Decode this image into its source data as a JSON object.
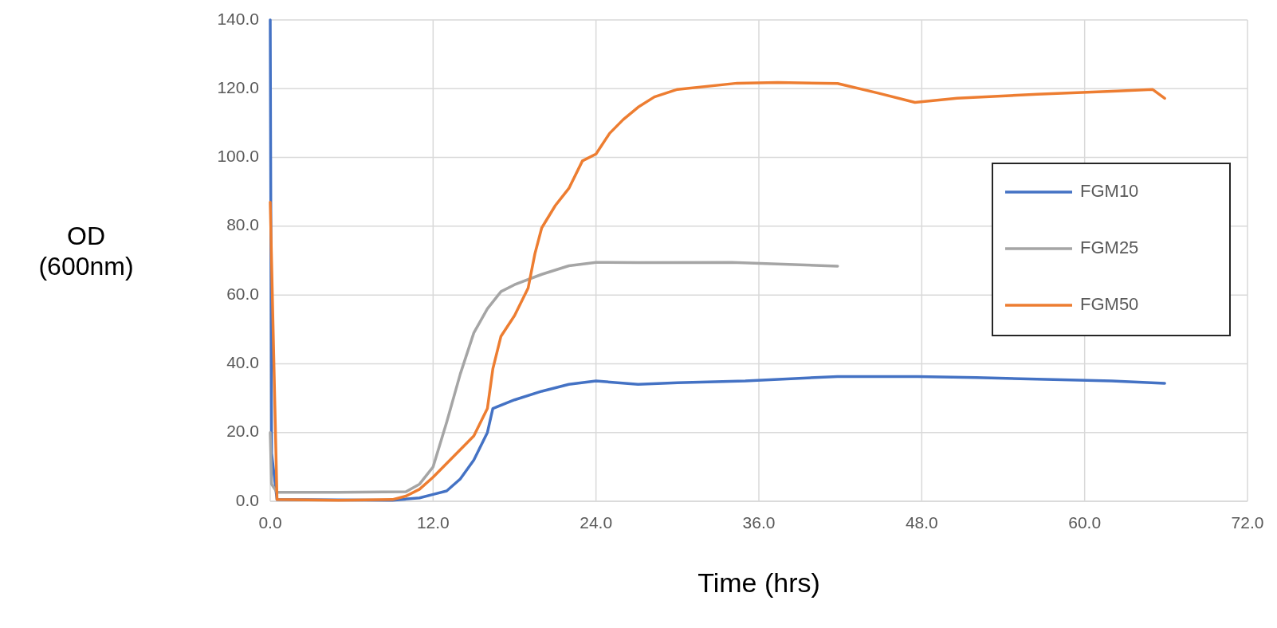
{
  "chart_data": {
    "type": "line",
    "xlabel": "Time (hrs)",
    "ylabel": "OD\n(600nm)",
    "xlim": [
      0,
      72
    ],
    "ylim": [
      0,
      140
    ],
    "xticks": [
      {
        "value": 0,
        "label": "0.0"
      },
      {
        "value": 12,
        "label": "12.0"
      },
      {
        "value": 24,
        "label": "24.0"
      },
      {
        "value": 36,
        "label": "36.0"
      },
      {
        "value": 48,
        "label": "48.0"
      },
      {
        "value": 60,
        "label": "60.0"
      },
      {
        "value": 72,
        "label": "72.0"
      }
    ],
    "yticks": [
      {
        "value": 0,
        "label": "0.0"
      },
      {
        "value": 20,
        "label": "20.0"
      },
      {
        "value": 40,
        "label": "40.0"
      },
      {
        "value": 60,
        "label": "60.0"
      },
      {
        "value": 80,
        "label": "80.0"
      },
      {
        "value": 100,
        "label": "100.0"
      },
      {
        "value": 120,
        "label": "120.0"
      },
      {
        "value": 140,
        "label": "140.0"
      }
    ],
    "grid": true,
    "legend": "right",
    "marker": "none",
    "line_style": "solid",
    "series": [
      {
        "name": "FGM10",
        "color": "#4472c4",
        "x": [
          0,
          0.1,
          0.5,
          9,
          11,
          12,
          13,
          14,
          15,
          16,
          16.4,
          18,
          20,
          22,
          24,
          27.1,
          30,
          35,
          41.8,
          47.7,
          52,
          56.5,
          62,
          65.9
        ],
        "values": [
          140,
          14,
          0.5,
          0.3,
          1,
          2,
          3,
          6.5,
          12,
          20,
          27,
          29.5,
          32,
          34,
          35,
          34,
          34.5,
          35,
          36.3,
          36.3,
          36,
          35.5,
          35,
          34.3
        ]
      },
      {
        "name": "FGM25",
        "color": "#a5a5a5",
        "x": [
          0,
          0.1,
          0.5,
          5,
          10,
          11,
          12,
          13,
          14,
          15,
          16,
          17,
          18,
          20,
          22,
          24,
          27.1,
          34,
          41.8
        ],
        "values": [
          20,
          5,
          2.6,
          2.6,
          2.8,
          5,
          10,
          23,
          37,
          49,
          56,
          61,
          63,
          66,
          68.5,
          69.5,
          69.4,
          69.5,
          68.4
        ]
      },
      {
        "name": "FGM50",
        "color": "#ed7d31",
        "x": [
          0,
          0.5,
          5,
          9,
          10,
          11,
          12,
          13,
          14,
          15,
          16,
          16.4,
          17,
          18,
          19,
          19.5,
          20,
          21,
          22,
          23,
          24,
          25,
          26,
          27.1,
          28.3,
          30,
          34.4,
          37.4,
          41.8,
          44.8,
          47.5,
          50.6,
          56.5,
          62.4,
          65,
          65.9
        ],
        "values": [
          87,
          0.5,
          0.3,
          0.5,
          1.5,
          3.5,
          7,
          11,
          15,
          19,
          27,
          38.5,
          48,
          54,
          62,
          72,
          79.5,
          86,
          91,
          99,
          101,
          107,
          111,
          114.6,
          117.6,
          119.8,
          121.6,
          121.8,
          121.5,
          118.7,
          116,
          117.2,
          118.4,
          119.3,
          119.8,
          117.2
        ]
      }
    ]
  }
}
